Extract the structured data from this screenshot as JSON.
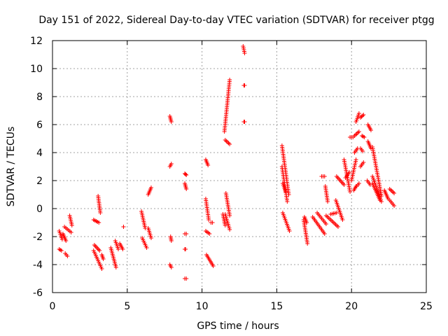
{
  "chart_data": {
    "type": "scatter",
    "title": "Day 151 of 2022, Sidereal Day-to-day VTEC variation (SDTVAR) for receiver ptgg",
    "xlabel": "GPS time / hours",
    "ylabel": "SDTVAR / TECUs",
    "xlim": [
      0,
      25
    ],
    "ylim": [
      -6,
      12
    ],
    "xticks": [
      0,
      5,
      10,
      15,
      20,
      25
    ],
    "yticks": [
      -6,
      -4,
      -2,
      0,
      2,
      4,
      6,
      8,
      10,
      12
    ],
    "grid": true,
    "marker": "+",
    "color": "#ff0000",
    "segments": [
      {
        "x": [
          0.45,
          0.6
        ],
        "y": [
          -2.9,
          -3.0
        ]
      },
      {
        "x": [
          0.45,
          0.65
        ],
        "y": [
          -1.6,
          -2.2
        ]
      },
      {
        "x": [
          0.7,
          0.9
        ],
        "y": [
          -1.8,
          -2.3
        ]
      },
      {
        "x": [
          0.85,
          1.0
        ],
        "y": [
          -3.2,
          -3.4
        ]
      },
      {
        "x": [
          0.8,
          1.25
        ],
        "y": [
          -1.3,
          -1.7
        ]
      },
      {
        "x": [
          1.15,
          1.3
        ],
        "y": [
          -0.5,
          -1.2
        ]
      },
      {
        "x": [
          2.75,
          3.1
        ],
        "y": [
          -0.8,
          -1.0
        ]
      },
      {
        "x": [
          2.8,
          3.15
        ],
        "y": [
          -2.6,
          -3.0
        ]
      },
      {
        "x": [
          2.75,
          3.3
        ],
        "y": [
          -3.0,
          -4.3
        ]
      },
      {
        "x": [
          3.05,
          3.2
        ],
        "y": [
          0.9,
          -0.3
        ]
      },
      {
        "x": [
          3.3,
          3.4
        ],
        "y": [
          -3.3,
          -3.6
        ]
      },
      {
        "x": [
          3.9,
          4.25
        ],
        "y": [
          -2.8,
          -4.2
        ]
      },
      {
        "x": [
          4.2,
          4.4
        ],
        "y": [
          -2.3,
          -2.9
        ]
      },
      {
        "x": [
          4.5,
          4.7
        ],
        "y": [
          -2.5,
          -2.9
        ]
      },
      {
        "x": [
          4.75,
          4.75
        ],
        "y": [
          -1.3,
          -1.3
        ]
      },
      {
        "x": [
          5.95,
          6.2
        ],
        "y": [
          -0.2,
          -1.4
        ]
      },
      {
        "x": [
          6.0,
          6.3
        ],
        "y": [
          -2.1,
          -2.8
        ]
      },
      {
        "x": [
          6.4,
          6.6
        ],
        "y": [
          1.0,
          1.5
        ]
      },
      {
        "x": [
          6.4,
          6.6
        ],
        "y": [
          -1.4,
          -2.1
        ]
      },
      {
        "x": [
          7.85,
          7.95
        ],
        "y": [
          6.6,
          6.2
        ]
      },
      {
        "x": [
          7.85,
          7.95
        ],
        "y": [
          3.0,
          3.2
        ]
      },
      {
        "x": [
          7.9,
          7.95
        ],
        "y": [
          -2.0,
          -2.3
        ]
      },
      {
        "x": [
          7.85,
          7.95
        ],
        "y": [
          -4.0,
          -4.2
        ]
      },
      {
        "x": [
          8.85,
          8.95
        ],
        "y": [
          2.5,
          2.4
        ]
      },
      {
        "x": [
          8.85,
          8.95
        ],
        "y": [
          1.8,
          1.4
        ]
      },
      {
        "x": [
          8.85,
          8.95
        ],
        "y": [
          -1.8,
          -1.8
        ]
      },
      {
        "x": [
          8.85,
          8.9
        ],
        "y": [
          -2.9,
          -2.9
        ]
      },
      {
        "x": [
          8.85,
          8.95
        ],
        "y": [
          -5.0,
          -5.0
        ]
      },
      {
        "x": [
          10.25,
          10.4
        ],
        "y": [
          3.5,
          3.1
        ]
      },
      {
        "x": [
          10.25,
          10.45
        ],
        "y": [
          0.7,
          -0.8
        ]
      },
      {
        "x": [
          10.25,
          10.5
        ],
        "y": [
          -1.6,
          -1.8
        ]
      },
      {
        "x": [
          10.3,
          10.75
        ],
        "y": [
          -3.3,
          -4.1
        ]
      },
      {
        "x": [
          10.6,
          10.7
        ],
        "y": [
          -1.0,
          -1.0
        ]
      },
      {
        "x": [
          11.4,
          11.55
        ],
        "y": [
          -0.4,
          -1.2
        ]
      },
      {
        "x": [
          11.5,
          11.85
        ],
        "y": [
          5.5,
          9.2
        ]
      },
      {
        "x": [
          11.55,
          11.85
        ],
        "y": [
          4.9,
          4.6
        ]
      },
      {
        "x": [
          11.6,
          11.85
        ],
        "y": [
          1.1,
          -0.5
        ]
      },
      {
        "x": [
          11.55,
          11.85
        ],
        "y": [
          -0.4,
          -1.5
        ]
      },
      {
        "x": [
          12.75,
          12.85
        ],
        "y": [
          11.6,
          11.1
        ]
      },
      {
        "x": [
          12.8,
          12.85
        ],
        "y": [
          8.8,
          8.8
        ]
      },
      {
        "x": [
          12.8,
          12.85
        ],
        "y": [
          6.2,
          6.2
        ]
      },
      {
        "x": [
          15.35,
          15.8
        ],
        "y": [
          4.5,
          1.0
        ]
      },
      {
        "x": [
          15.35,
          15.7
        ],
        "y": [
          3.0,
          0.5
        ]
      },
      {
        "x": [
          15.4,
          15.85
        ],
        "y": [
          -0.3,
          -1.6
        ]
      },
      {
        "x": [
          15.4,
          15.6
        ],
        "y": [
          1.8,
          1.2
        ]
      },
      {
        "x": [
          16.8,
          17.05
        ],
        "y": [
          -0.8,
          -2.5
        ]
      },
      {
        "x": [
          16.85,
          17.0
        ],
        "y": [
          -0.6,
          -1.0
        ]
      },
      {
        "x": [
          17.4,
          18.2
        ],
        "y": [
          -0.6,
          -1.8
        ]
      },
      {
        "x": [
          17.7,
          18.3
        ],
        "y": [
          -0.3,
          -1.1
        ]
      },
      {
        "x": [
          18.0,
          18.2
        ],
        "y": [
          2.3,
          2.3
        ]
      },
      {
        "x": [
          18.25,
          18.4
        ],
        "y": [
          1.6,
          0.5
        ]
      },
      {
        "x": [
          18.3,
          19.1
        ],
        "y": [
          -0.5,
          -1.3
        ]
      },
      {
        "x": [
          18.6,
          19.0
        ],
        "y": [
          -0.4,
          -0.3
        ]
      },
      {
        "x": [
          19.0,
          19.5
        ],
        "y": [
          2.3,
          1.7
        ]
      },
      {
        "x": [
          18.95,
          19.4
        ],
        "y": [
          0.6,
          -0.8
        ]
      },
      {
        "x": [
          19.5,
          19.9
        ],
        "y": [
          3.5,
          1.2
        ]
      },
      {
        "x": [
          19.6,
          19.85
        ],
        "y": [
          2.2,
          2.6
        ]
      },
      {
        "x": [
          19.9,
          20.1
        ],
        "y": [
          5.1,
          5.1
        ]
      },
      {
        "x": [
          20.0,
          20.3
        ],
        "y": [
          2.0,
          3.5
        ]
      },
      {
        "x": [
          20.2,
          20.4
        ],
        "y": [
          4.0,
          4.3
        ]
      },
      {
        "x": [
          20.3,
          20.5
        ],
        "y": [
          6.2,
          6.8
        ]
      },
      {
        "x": [
          20.2,
          20.5
        ],
        "y": [
          5.2,
          5.5
        ]
      },
      {
        "x": [
          20.15,
          20.3
        ],
        "y": [
          1.3,
          1.6
        ]
      },
      {
        "x": [
          20.35,
          20.5
        ],
        "y": [
          1.6,
          1.8
        ]
      },
      {
        "x": [
          20.6,
          20.8
        ],
        "y": [
          6.5,
          6.7
        ]
      },
      {
        "x": [
          20.6,
          20.8
        ],
        "y": [
          3.0,
          3.3
        ]
      },
      {
        "x": [
          20.6,
          20.75
        ],
        "y": [
          4.3,
          4.1
        ]
      },
      {
        "x": [
          20.7,
          20.85
        ],
        "y": [
          5.2,
          5.1
        ]
      },
      {
        "x": [
          21.1,
          21.3
        ],
        "y": [
          6.0,
          5.6
        ]
      },
      {
        "x": [
          21.1,
          21.3
        ],
        "y": [
          4.8,
          4.3
        ]
      },
      {
        "x": [
          21.05,
          21.25
        ],
        "y": [
          2.0,
          1.7
        ]
      },
      {
        "x": [
          21.4,
          22.0
        ],
        "y": [
          4.4,
          0.9
        ]
      },
      {
        "x": [
          21.4,
          21.9
        ],
        "y": [
          1.8,
          0.6
        ]
      },
      {
        "x": [
          21.4,
          22.0
        ],
        "y": [
          2.3,
          0.5
        ]
      },
      {
        "x": [
          22.2,
          22.45
        ],
        "y": [
          1.3,
          0.7
        ]
      },
      {
        "x": [
          22.55,
          22.85
        ],
        "y": [
          1.4,
          1.1
        ]
      },
      {
        "x": [
          22.55,
          22.85
        ],
        "y": [
          0.6,
          0.2
        ]
      }
    ]
  }
}
